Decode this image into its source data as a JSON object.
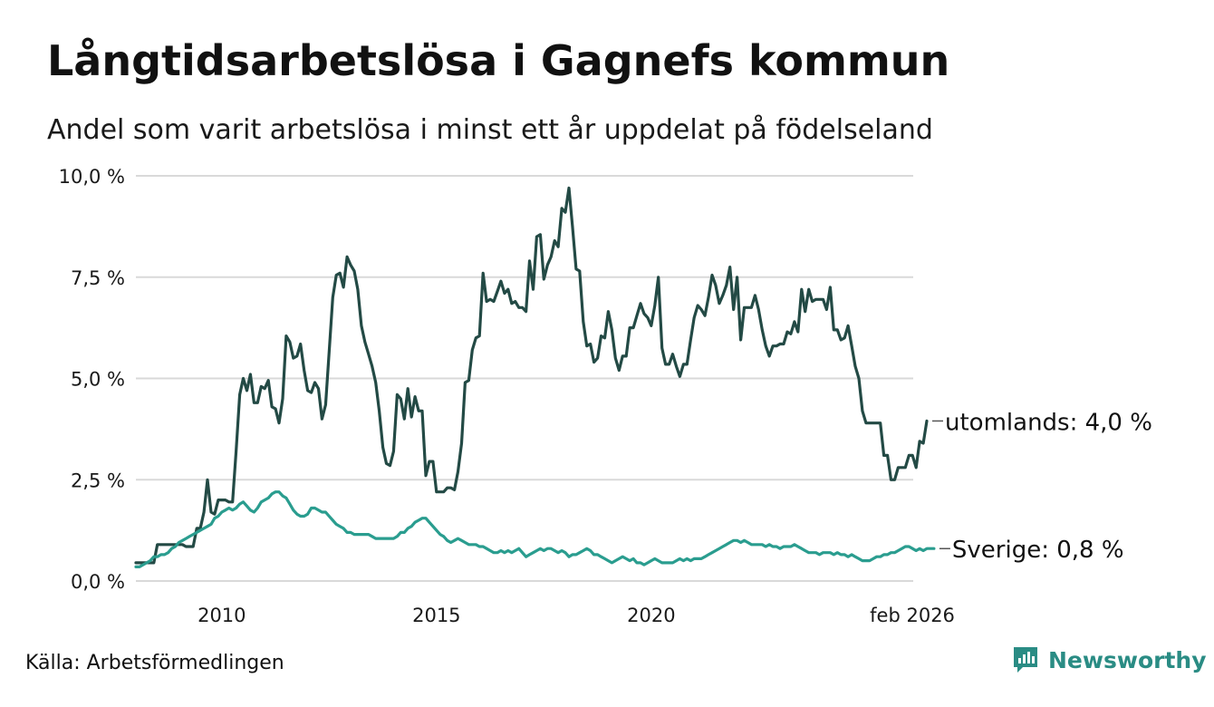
{
  "title": "Långtidsarbetslösa i Gagnefs kommun",
  "subtitle": "Andel som varit arbetslösa i minst ett år uppdelat på födelseland",
  "source": "Källa: Arbetsförmedlingen",
  "brand": {
    "name": "Newsworthy",
    "icon": "newsworthy-logo-icon",
    "color": "#2a8c84"
  },
  "chart_data": {
    "type": "line",
    "title": "Långtidsarbetslösa i Gagnefs kommun",
    "xlabel": "",
    "ylabel": "",
    "x_start": 2008.0,
    "x_step_months": 1,
    "xlim": [
      2008.0,
      2026.1
    ],
    "ylim": [
      0,
      10
    ],
    "y_ticks": [
      0,
      2.5,
      5,
      7.5,
      10
    ],
    "y_tick_labels": [
      "0,0 %",
      "2,5 %",
      "5,0 %",
      "7,5 %",
      "10,0 %"
    ],
    "x_ticks": [
      2010,
      2015,
      2020,
      2026.08
    ],
    "x_tick_labels": [
      "2010",
      "2015",
      "2020",
      "feb 2026"
    ],
    "grid": true,
    "series": [
      {
        "name": "utomlands",
        "label": "utomlands: 4,0 %",
        "color": "#234a45",
        "values": [
          0.45,
          0.45,
          0.45,
          0.45,
          0.45,
          0.45,
          0.9,
          0.9,
          0.9,
          0.9,
          0.9,
          0.9,
          0.9,
          0.9,
          0.85,
          0.85,
          0.85,
          1.3,
          1.3,
          1.7,
          2.5,
          1.7,
          1.65,
          2.0,
          2.0,
          2.0,
          1.95,
          1.95,
          3.2,
          4.6,
          5.0,
          4.7,
          5.1,
          4.4,
          4.4,
          4.8,
          4.75,
          4.95,
          4.3,
          4.25,
          3.9,
          4.5,
          6.05,
          5.9,
          5.5,
          5.55,
          5.85,
          5.2,
          4.7,
          4.65,
          4.9,
          4.75,
          4.0,
          4.35,
          5.65,
          7.0,
          7.55,
          7.6,
          7.25,
          8.0,
          7.8,
          7.65,
          7.2,
          6.3,
          5.9,
          5.6,
          5.3,
          4.9,
          4.2,
          3.3,
          2.9,
          2.85,
          3.2,
          4.6,
          4.5,
          4.0,
          4.75,
          4.05,
          4.55,
          4.2,
          4.2,
          2.6,
          2.95,
          2.95,
          2.2,
          2.2,
          2.2,
          2.3,
          2.3,
          2.25,
          2.7,
          3.4,
          4.9,
          4.95,
          5.7,
          6.0,
          6.05,
          7.6,
          6.9,
          6.95,
          6.9,
          7.15,
          7.4,
          7.1,
          7.2,
          6.85,
          6.9,
          6.75,
          6.75,
          6.65,
          7.9,
          7.2,
          8.5,
          8.55,
          7.45,
          7.8,
          8.0,
          8.4,
          8.25,
          9.2,
          9.1,
          9.7,
          8.75,
          7.7,
          7.65,
          6.4,
          5.8,
          5.85,
          5.4,
          5.5,
          6.05,
          6.0,
          6.65,
          6.2,
          5.5,
          5.2,
          5.55,
          5.55,
          6.25,
          6.25,
          6.55,
          6.85,
          6.6,
          6.5,
          6.3,
          6.8,
          7.5,
          5.75,
          5.35,
          5.35,
          5.6,
          5.3,
          5.05,
          5.35,
          5.35,
          5.95,
          6.5,
          6.8,
          6.7,
          6.55,
          7.0,
          7.55,
          7.3,
          6.85,
          7.05,
          7.3,
          7.75,
          6.7,
          7.5,
          5.95,
          6.75,
          6.75,
          6.75,
          7.05,
          6.7,
          6.2,
          5.8,
          5.55,
          5.8,
          5.8,
          5.85,
          5.85,
          6.15,
          6.1,
          6.4,
          6.15,
          7.2,
          6.65,
          7.2,
          6.9,
          6.95,
          6.95,
          6.95,
          6.7,
          7.25,
          6.2,
          6.2,
          5.95,
          6.0,
          6.3,
          5.8,
          5.3,
          5.0,
          4.2,
          3.9,
          3.9,
          3.9,
          3.9,
          3.9,
          3.1,
          3.1,
          2.5,
          2.5,
          2.8,
          2.8,
          2.8,
          3.1,
          3.1,
          2.8,
          3.45,
          3.4,
          3.95
        ]
      },
      {
        "name": "Sverige",
        "label": "Sverige: 0,8 %",
        "color": "#2a9d8f",
        "values": [
          0.35,
          0.35,
          0.4,
          0.45,
          0.5,
          0.6,
          0.6,
          0.65,
          0.65,
          0.7,
          0.8,
          0.85,
          0.95,
          1.0,
          1.05,
          1.1,
          1.15,
          1.2,
          1.25,
          1.3,
          1.35,
          1.4,
          1.55,
          1.6,
          1.7,
          1.75,
          1.8,
          1.75,
          1.8,
          1.9,
          1.95,
          1.85,
          1.75,
          1.7,
          1.8,
          1.95,
          2.0,
          2.05,
          2.15,
          2.2,
          2.2,
          2.1,
          2.05,
          1.9,
          1.75,
          1.65,
          1.6,
          1.6,
          1.65,
          1.8,
          1.8,
          1.75,
          1.7,
          1.7,
          1.6,
          1.5,
          1.4,
          1.35,
          1.3,
          1.2,
          1.2,
          1.15,
          1.15,
          1.15,
          1.15,
          1.15,
          1.1,
          1.05,
          1.05,
          1.05,
          1.05,
          1.05,
          1.05,
          1.1,
          1.2,
          1.2,
          1.3,
          1.35,
          1.45,
          1.5,
          1.55,
          1.55,
          1.45,
          1.35,
          1.25,
          1.15,
          1.1,
          1.0,
          0.95,
          1.0,
          1.05,
          1.0,
          0.95,
          0.9,
          0.9,
          0.9,
          0.85,
          0.85,
          0.8,
          0.75,
          0.7,
          0.7,
          0.75,
          0.7,
          0.75,
          0.7,
          0.75,
          0.8,
          0.7,
          0.6,
          0.65,
          0.7,
          0.75,
          0.8,
          0.75,
          0.8,
          0.8,
          0.75,
          0.7,
          0.75,
          0.7,
          0.6,
          0.65,
          0.65,
          0.7,
          0.75,
          0.8,
          0.75,
          0.65,
          0.65,
          0.6,
          0.55,
          0.5,
          0.45,
          0.5,
          0.55,
          0.6,
          0.55,
          0.5,
          0.55,
          0.45,
          0.45,
          0.4,
          0.45,
          0.5,
          0.55,
          0.5,
          0.45,
          0.45,
          0.45,
          0.45,
          0.5,
          0.55,
          0.5,
          0.55,
          0.5,
          0.55,
          0.55,
          0.55,
          0.6,
          0.65,
          0.7,
          0.75,
          0.8,
          0.85,
          0.9,
          0.95,
          1.0,
          1.0,
          0.95,
          1.0,
          0.95,
          0.9,
          0.9,
          0.9,
          0.9,
          0.85,
          0.9,
          0.85,
          0.85,
          0.8,
          0.85,
          0.85,
          0.85,
          0.9,
          0.85,
          0.8,
          0.75,
          0.7,
          0.7,
          0.7,
          0.65,
          0.7,
          0.7,
          0.7,
          0.65,
          0.7,
          0.65,
          0.65,
          0.6,
          0.65,
          0.6,
          0.55,
          0.5,
          0.5,
          0.5,
          0.55,
          0.6,
          0.6,
          0.65,
          0.65,
          0.7,
          0.7,
          0.75,
          0.8,
          0.85,
          0.85,
          0.8,
          0.75,
          0.8,
          0.75,
          0.8,
          0.8,
          0.8
        ]
      }
    ]
  }
}
